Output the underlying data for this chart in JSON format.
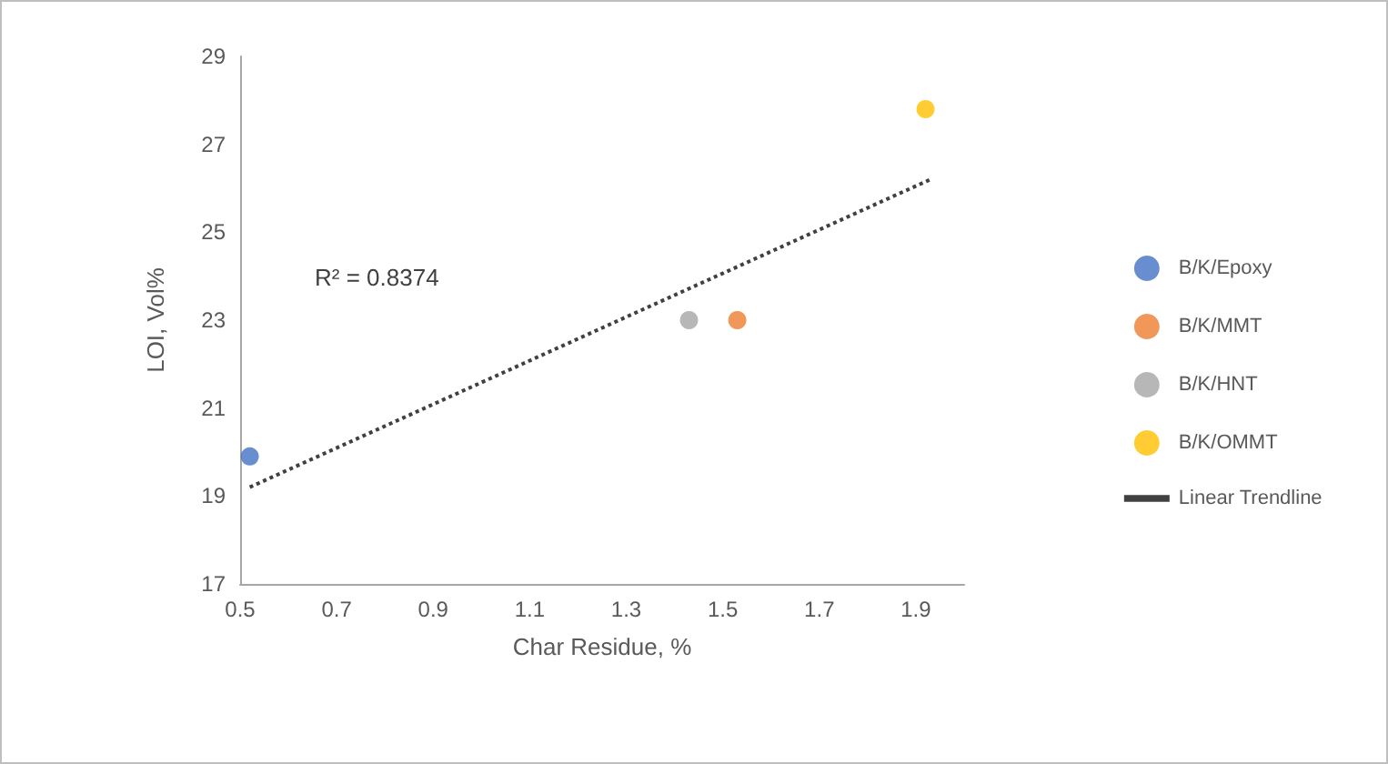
{
  "chart_data": {
    "type": "scatter",
    "xlabel": "Char Residue, %",
    "ylabel": "LOI, Vol%",
    "annotations": [
      "R² = 0.8374"
    ],
    "series": [
      {
        "name": "B/K/Epoxy",
        "color": "#4472c4",
        "marker": "circle",
        "x": [
          0.52
        ],
        "values": [
          19.9
        ]
      },
      {
        "name": "B/K/MMT",
        "color": "#ed7d31",
        "marker": "circle",
        "x": [
          1.53
        ],
        "values": [
          23.0
        ]
      },
      {
        "name": "B/K/HNT",
        "color": "#a5a5a5",
        "marker": "circle",
        "x": [
          1.43
        ],
        "values": [
          23.0
        ]
      },
      {
        "name": "B/K/OMMT",
        "color": "#ffc000",
        "marker": "circle",
        "x": [
          1.92
        ],
        "values": [
          27.8
        ]
      },
      {
        "name": "Linear Trendline",
        "type": "line",
        "color": "#404040",
        "marker": "none",
        "line_style": "dotted",
        "x": [
          0.52,
          1.93
        ],
        "values": [
          19.2,
          26.2
        ]
      }
    ],
    "xlim": [
      0.5,
      2.0
    ],
    "xticks": [
      0.5,
      0.7,
      0.9,
      1.1,
      1.3,
      1.5,
      1.7,
      1.9
    ],
    "ylim": [
      17,
      29
    ],
    "yticks": [
      17,
      19,
      21,
      23,
      25,
      27,
      29
    ],
    "grid": false,
    "legend": "right"
  }
}
